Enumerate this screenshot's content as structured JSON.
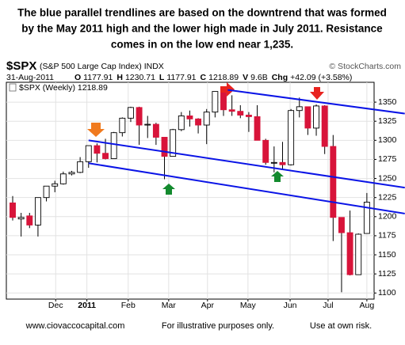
{
  "chart_data": {
    "type": "candlestick",
    "caption": [
      "The blue parallel trendlines are based on the downtrend that was formed",
      "by the May 2011 high and the lower high made in July 2011.  Resistance",
      "comes in on the low end near 1,235."
    ],
    "symbol": "$SPX",
    "symbol_name": "(S&P 500 Large Cap Index) INDX",
    "copyright": "© StockCharts.com",
    "date": "31-Aug-2011",
    "quote": [
      {
        "label": "O",
        "text": "1177.91"
      },
      {
        "label": "H",
        "text": "1230.71"
      },
      {
        "label": "L",
        "text": "1177.91"
      },
      {
        "label": "C",
        "text": "1218.89"
      },
      {
        "label": "V",
        "text": "9.6B"
      },
      {
        "label": "Chg",
        "text": "+42.09 (+3.58%)"
      }
    ],
    "legend": "$SPX (Weekly) 1218.89",
    "up_color": "#ffffff",
    "down_color": "#d8143a",
    "open": [
      1218,
      1197,
      1201,
      1189,
      1225,
      1240,
      1243,
      1256,
      1258,
      1272,
      1293,
      1283,
      1276,
      1310,
      1329,
      1343,
      1320,
      1321,
      1304,
      1279,
      1314,
      1332,
      1328,
      1320,
      1337,
      1364,
      1340,
      1338,
      1333,
      1331,
      1300,
      1271,
      1271,
      1268,
      1339,
      1344,
      1316,
      1345,
      1292,
      1199,
      1179,
      1124,
      1178
    ],
    "high": [
      1227,
      1205,
      1205,
      1225,
      1240,
      1247,
      1259,
      1260,
      1278,
      1293,
      1296,
      1302,
      1311,
      1330,
      1344,
      1344,
      1332,
      1323,
      1304,
      1315,
      1337,
      1339,
      1329,
      1341,
      1364,
      1370,
      1359,
      1346,
      1337,
      1346,
      1302,
      1292,
      1298,
      1341,
      1356,
      1344,
      1347,
      1346,
      1307,
      1199,
      1208,
      1178,
      1231
    ],
    "low": [
      1195,
      1174,
      1185,
      1174,
      1220,
      1232,
      1242,
      1254,
      1257,
      1264,
      1271,
      1275,
      1276,
      1305,
      1324,
      1294,
      1303,
      1294,
      1249,
      1279,
      1312,
      1318,
      1309,
      1295,
      1330,
      1332,
      1332,
      1329,
      1311,
      1300,
      1268,
      1258,
      1262,
      1267,
      1330,
      1307,
      1306,
      1282,
      1168,
      1101,
      1123,
      1125,
      1178
    ],
    "close": [
      1199,
      1199,
      1189,
      1225,
      1240,
      1243,
      1256,
      1258,
      1272,
      1293,
      1283,
      1276,
      1310,
      1329,
      1343,
      1320,
      1321,
      1304,
      1279,
      1314,
      1332,
      1328,
      1320,
      1337,
      1364,
      1340,
      1338,
      1333,
      1331,
      1300,
      1271,
      1271,
      1268,
      1339,
      1344,
      1316,
      1345,
      1292,
      1199,
      1179,
      1124,
      1177,
      1219
    ],
    "xticks": [
      {
        "value": 5.1,
        "label": "Dec"
      },
      {
        "value": 8.8,
        "label": "2011"
      },
      {
        "value": 13.7,
        "label": "Feb"
      },
      {
        "value": 18.5,
        "label": "Mar"
      },
      {
        "value": 23.1,
        "label": "Apr"
      },
      {
        "value": 27.9,
        "label": "May"
      },
      {
        "value": 32.9,
        "label": "Jun"
      },
      {
        "value": 37.4,
        "label": "Jul"
      },
      {
        "value": 42,
        "label": "Aug"
      }
    ],
    "ylim": [
      1092,
      1376
    ],
    "yticks": [
      1100,
      1125,
      1150,
      1175,
      1200,
      1225,
      1250,
      1275,
      1300,
      1325,
      1350
    ],
    "grid": true,
    "trendline_color": "#0a14e6",
    "trendlines": [
      {
        "x": [
          25.5,
          46.5
        ],
        "values": [
          1366,
          1335
        ]
      },
      {
        "x": [
          9,
          46.5
        ],
        "values": [
          1300,
          1238
        ]
      },
      {
        "x": [
          9,
          46.5
        ],
        "values": [
          1270,
          1204
        ]
      }
    ],
    "footer": [
      "www.ciovaccocapital.com",
      "For illustrative purposes only.",
      "Use at own risk."
    ]
  }
}
